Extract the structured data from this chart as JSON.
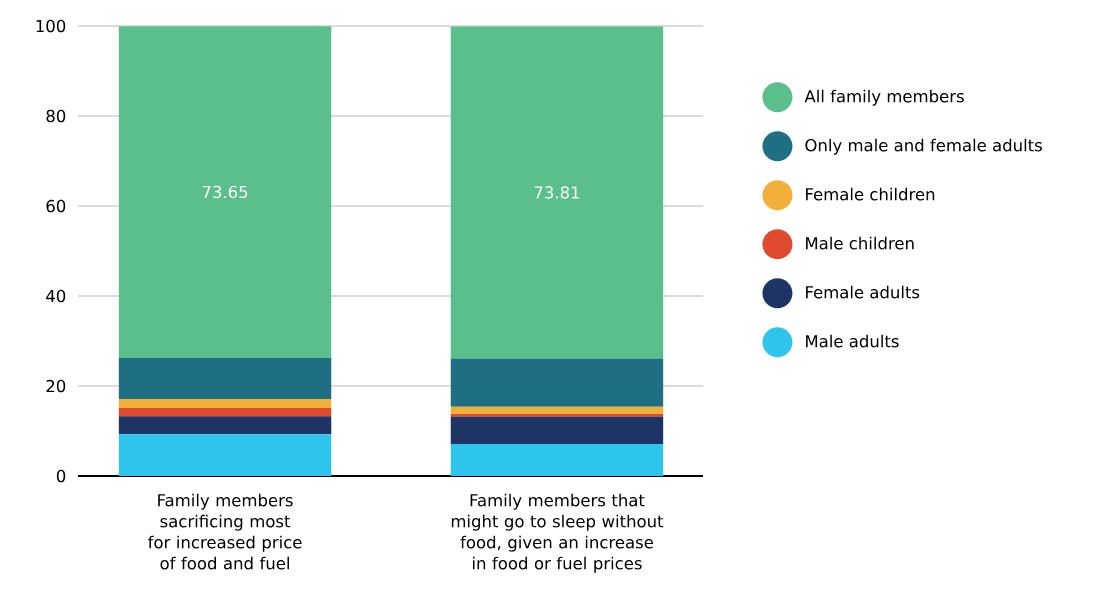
{
  "chart_data": {
    "type": "bar",
    "stacked": true,
    "categories": [
      "Family members sacrificing most for increased price of food and fuel",
      "Family members that might go to sleep without food, given an increase in food or fuel prices"
    ],
    "series": [
      {
        "name": "Male adults",
        "color": "#2ec4ec",
        "values": [
          9.3,
          7.1
        ]
      },
      {
        "name": "Female adults",
        "color": "#1e3464",
        "values": [
          4.0,
          6.1
        ]
      },
      {
        "name": "Male children",
        "color": "#de4b2e",
        "values": [
          1.8,
          0.6
        ]
      },
      {
        "name": "Female children",
        "color": "#f2b03a",
        "values": [
          2.0,
          1.6
        ]
      },
      {
        "name": "Only male and female adults",
        "color": "#1e6f84",
        "values": [
          9.2,
          10.7
        ]
      },
      {
        "name": "All family members",
        "color": "#5bbf8b",
        "values": [
          73.65,
          73.81
        ],
        "value_labels": [
          "73.65",
          "73.81"
        ]
      }
    ],
    "ylim": [
      0,
      100
    ],
    "yticks": [
      0,
      20,
      40,
      60,
      80,
      100
    ],
    "grid": "y",
    "legend": "right"
  }
}
